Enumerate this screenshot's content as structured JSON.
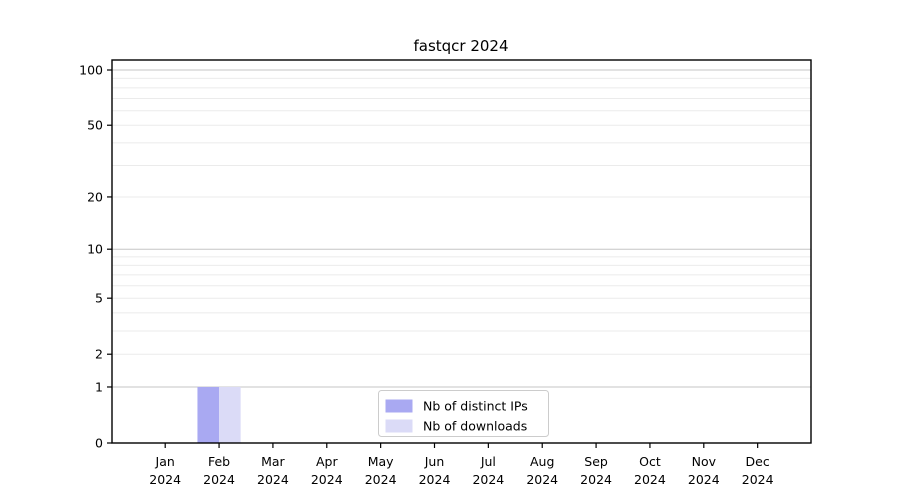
{
  "chart_data": {
    "type": "bar",
    "title": "fastqcr 2024",
    "xlabel": "",
    "ylabel": "",
    "categories_month": [
      "Jan",
      "Feb",
      "Mar",
      "Apr",
      "May",
      "Jun",
      "Jul",
      "Aug",
      "Sep",
      "Oct",
      "Nov",
      "Dec"
    ],
    "categories_year": "2024",
    "series": [
      {
        "name": "Nb of distinct IPs",
        "color": "#a9a9f2",
        "values": [
          0,
          1,
          0,
          0,
          0,
          0,
          0,
          0,
          0,
          0,
          0,
          0
        ]
      },
      {
        "name": "Nb of downloads",
        "color": "#dbdbf7",
        "values": [
          0,
          1,
          0,
          0,
          0,
          0,
          0,
          0,
          0,
          0,
          0,
          0
        ]
      }
    ],
    "y_axis": {
      "scale": "log1p",
      "tick_values": [
        0,
        1,
        2,
        5,
        10,
        20,
        50,
        100
      ],
      "tick_labels": [
        "0",
        "1",
        "2",
        "5",
        "10",
        "20",
        "50",
        "100"
      ],
      "major_gridlines": [
        1,
        10,
        100
      ],
      "minor_gridlines": [
        2,
        3,
        4,
        5,
        6,
        7,
        8,
        9,
        20,
        30,
        40,
        50,
        60,
        70,
        80,
        90
      ],
      "ylim": [
        0,
        114
      ],
      "grid": "horizontal-only"
    },
    "legend": {
      "position": "inside-bottom-center",
      "entries": [
        "Nb of distinct IPs",
        "Nb of downloads"
      ]
    },
    "colors": {
      "background": "#ffffff",
      "axis": "#000000",
      "major_grid": "#c6c6c6",
      "minor_grid": "#ebebeb",
      "legend_border": "#cccccc",
      "bar_distinct_ips": "#a9a9f2",
      "bar_downloads": "#dbdbf7"
    }
  }
}
